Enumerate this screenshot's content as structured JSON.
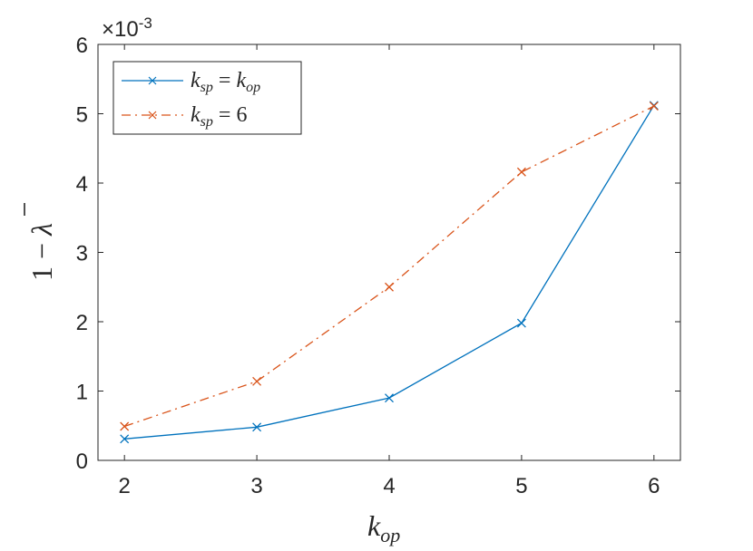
{
  "chart_data": {
    "type": "line",
    "x": [
      2,
      3,
      4,
      5,
      6
    ],
    "xlim": [
      1.8,
      6.2
    ],
    "ylim": [
      0,
      6
    ],
    "x_ticks": [
      "2",
      "3",
      "4",
      "5",
      "6"
    ],
    "y_ticks": [
      "0",
      "1",
      "2",
      "3",
      "4",
      "5",
      "6"
    ],
    "y_exponent": {
      "base": "×10",
      "power": "-3"
    },
    "xlabel": {
      "main": "k",
      "sub": "op"
    },
    "ylabel": {
      "prefix": "1 − ",
      "main": "λ"
    },
    "grid": false,
    "legend_position": "top-left",
    "series": [
      {
        "name_parts": {
          "lhs": "k",
          "lhs_sub": "sp",
          "eq": " = ",
          "rhs": "k",
          "rhs_sub": "op"
        },
        "values": [
          0.31,
          0.48,
          0.9,
          1.98,
          5.12
        ],
        "color": "#0072BD",
        "style": "solid",
        "marker": "x"
      },
      {
        "name_parts": {
          "lhs": "k",
          "lhs_sub": "sp",
          "eq": " = ",
          "rhs": "6",
          "rhs_sub": ""
        },
        "values": [
          0.49,
          1.14,
          2.5,
          4.16,
          5.11
        ],
        "color": "#D95319",
        "style": "dashdot",
        "marker": "x"
      }
    ]
  }
}
